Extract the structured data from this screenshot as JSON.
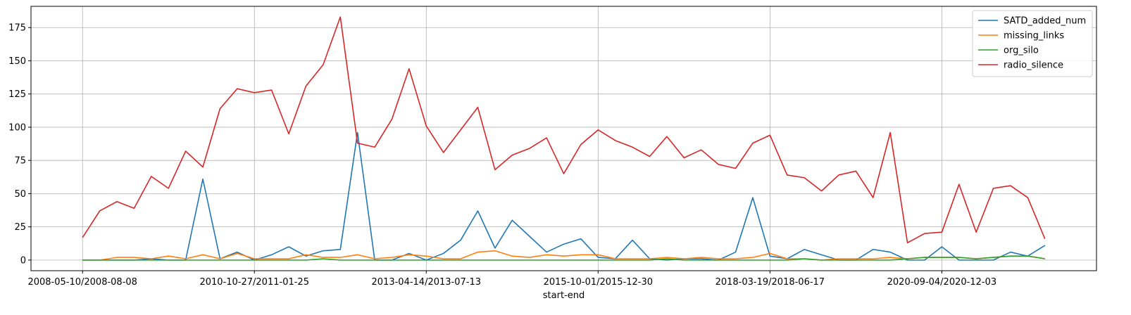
{
  "chart_data": {
    "type": "line",
    "xlabel": "start-end",
    "ylabel": "",
    "ylim": [
      -8,
      191
    ],
    "xlim": [
      -3,
      59
    ],
    "grid": true,
    "legend_position": "top-right",
    "x_tick_positions": [
      0,
      10,
      20,
      30,
      40,
      50
    ],
    "x_tick_labels": [
      "2008-05-10/2008-08-08",
      "2010-10-27/2011-01-25",
      "2013-04-14/2013-07-13",
      "2015-10-01/2015-12-30",
      "2018-03-19/2018-06-17",
      "2020-09-04/2020-12-03"
    ],
    "y_ticks": [
      0,
      25,
      50,
      75,
      100,
      125,
      150,
      175
    ],
    "x": [
      0,
      1,
      2,
      3,
      4,
      5,
      6,
      7,
      8,
      9,
      10,
      11,
      12,
      13,
      14,
      15,
      16,
      17,
      18,
      19,
      20,
      21,
      22,
      23,
      24,
      25,
      26,
      27,
      28,
      29,
      30,
      31,
      32,
      33,
      34,
      35,
      36,
      37,
      38,
      39,
      40,
      41,
      42,
      43,
      44,
      45,
      46,
      47,
      48,
      49,
      50,
      51,
      52,
      53,
      54,
      55,
      56
    ],
    "series": [
      {
        "name": "SATD_added_num",
        "color": "#1f77b4",
        "values": [
          0,
          0,
          0,
          0,
          1,
          0,
          0,
          61,
          1,
          6,
          0,
          4,
          10,
          3,
          7,
          8,
          96,
          0,
          0,
          5,
          0,
          5,
          15,
          37,
          9,
          30,
          18,
          6,
          12,
          16,
          2,
          1,
          15,
          1,
          0,
          1,
          1,
          0,
          6,
          47,
          3,
          1,
          8,
          4,
          0,
          0,
          8,
          6,
          0,
          0,
          10,
          0,
          0,
          0,
          6,
          3,
          11
        ]
      },
      {
        "name": "missing_links",
        "color": "#ff7f0e",
        "values": [
          0,
          0,
          2,
          2,
          1,
          3,
          1,
          4,
          1,
          5,
          1,
          1,
          1,
          4,
          2,
          2,
          4,
          1,
          2,
          4,
          3,
          1,
          1,
          6,
          7,
          3,
          2,
          4,
          3,
          4,
          4,
          1,
          1,
          1,
          2,
          1,
          2,
          1,
          1,
          2,
          5,
          1,
          1,
          0,
          1,
          1,
          1,
          2,
          1,
          2,
          2,
          2,
          1,
          2,
          3,
          3,
          1
        ]
      },
      {
        "name": "org_silo",
        "color": "#2ca02c",
        "values": [
          0,
          0,
          0,
          0,
          0,
          0,
          0,
          0,
          0,
          0,
          0,
          0,
          0,
          0,
          1,
          0,
          0,
          0,
          0,
          0,
          0,
          0,
          0,
          0,
          0,
          0,
          0,
          0,
          0,
          0,
          0,
          0,
          0,
          0,
          1,
          0,
          0,
          0,
          0,
          0,
          0,
          0,
          1,
          0,
          0,
          0,
          0,
          0,
          1,
          2,
          2,
          2,
          1,
          2,
          3,
          3,
          1
        ]
      },
      {
        "name": "radio_silence",
        "color": "#d62728",
        "values": [
          17,
          37,
          44,
          39,
          63,
          54,
          82,
          70,
          114,
          129,
          126,
          128,
          95,
          131,
          147,
          183,
          88,
          85,
          106,
          144,
          101,
          81,
          98,
          115,
          68,
          79,
          84,
          92,
          65,
          87,
          98,
          90,
          85,
          78,
          93,
          77,
          83,
          72,
          69,
          88,
          94,
          64,
          62,
          52,
          64,
          67,
          47,
          96,
          13,
          20,
          21,
          57,
          21,
          54,
          56,
          47,
          16
        ]
      }
    ]
  }
}
